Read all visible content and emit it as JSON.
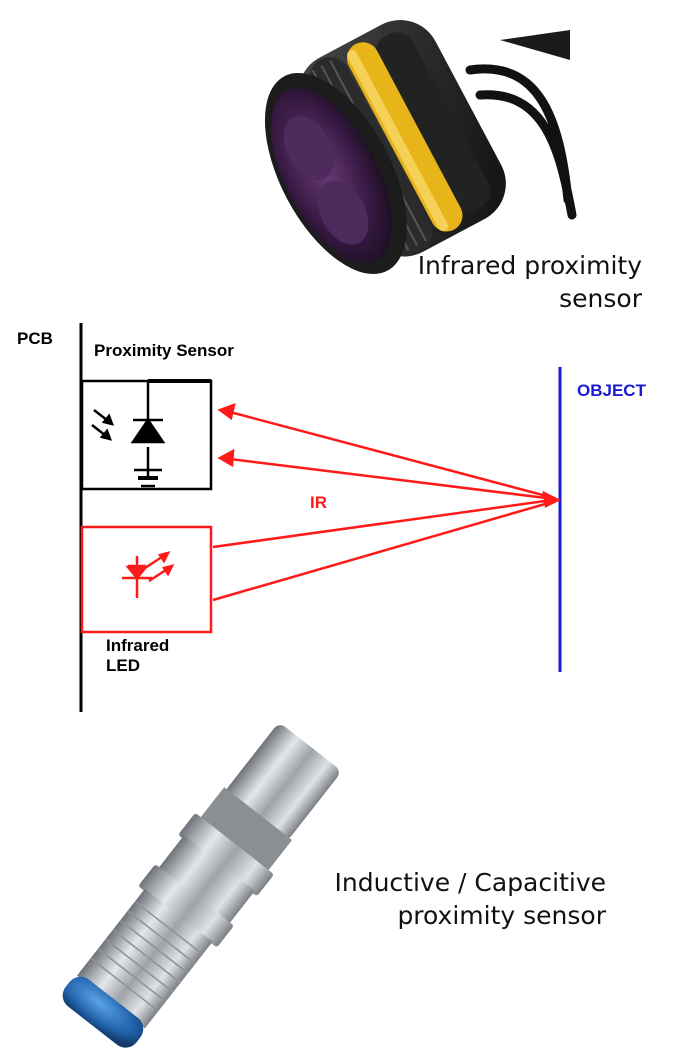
{
  "photos": {
    "infrared": {
      "icon": "infrared-sensor-photo",
      "caption": [
        "Infrared proximity",
        "sensor"
      ]
    },
    "inductive": {
      "icon": "inductive-sensor-photo",
      "caption": [
        "Inductive / Capacitive",
        "proximity sensor"
      ]
    }
  },
  "diagram": {
    "pcb_label": "PCB",
    "sensor_label": "Proximity Sensor",
    "object_label": "OBJECT",
    "ir_label": "IR",
    "led_label": [
      "Infrared",
      "LED"
    ],
    "colors": {
      "ir": "#ff1a1a",
      "object": "#1a1ad6",
      "ink": "#000000"
    }
  }
}
